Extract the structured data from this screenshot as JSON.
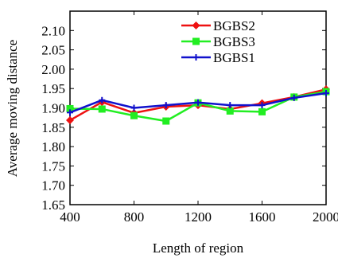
{
  "chart_data": {
    "type": "line",
    "title": "",
    "xlabel": "Length of region",
    "ylabel": "Average moving distance",
    "x": [
      400,
      600,
      800,
      1000,
      1200,
      1400,
      1600,
      1800,
      2000
    ],
    "xlim": [
      400,
      2000
    ],
    "ylim": [
      1.65,
      2.15
    ],
    "x_ticks": [
      400,
      800,
      1200,
      1600,
      2000
    ],
    "x_tick_labels": [
      "400",
      "800",
      "1200",
      "1600",
      "2000"
    ],
    "y_ticks": [
      1.65,
      1.7,
      1.75,
      1.8,
      1.85,
      1.9,
      1.95,
      2.0,
      2.05,
      2.1
    ],
    "y_tick_labels": [
      "1.65",
      "1.70",
      "1.75",
      "1.80",
      "1.85",
      "1.90",
      "1.95",
      "2.00",
      "2.05",
      "2.10"
    ],
    "grid": false,
    "legend_position": "top-right",
    "series": [
      {
        "name": "BGBS2",
        "color": "#ee1111",
        "marker": "diamond",
        "values": [
          1.868,
          1.915,
          1.887,
          1.903,
          1.907,
          1.897,
          1.912,
          1.928,
          1.948
        ]
      },
      {
        "name": "BGBS3",
        "color": "#22ee22",
        "marker": "square",
        "values": [
          1.898,
          1.897,
          1.88,
          1.866,
          1.913,
          1.892,
          1.89,
          1.928,
          1.942
        ]
      },
      {
        "name": "BGBS1",
        "color": "#1111cc",
        "marker": "plus",
        "values": [
          1.888,
          1.92,
          1.9,
          1.907,
          1.914,
          1.907,
          1.907,
          1.926,
          1.938
        ]
      }
    ]
  }
}
